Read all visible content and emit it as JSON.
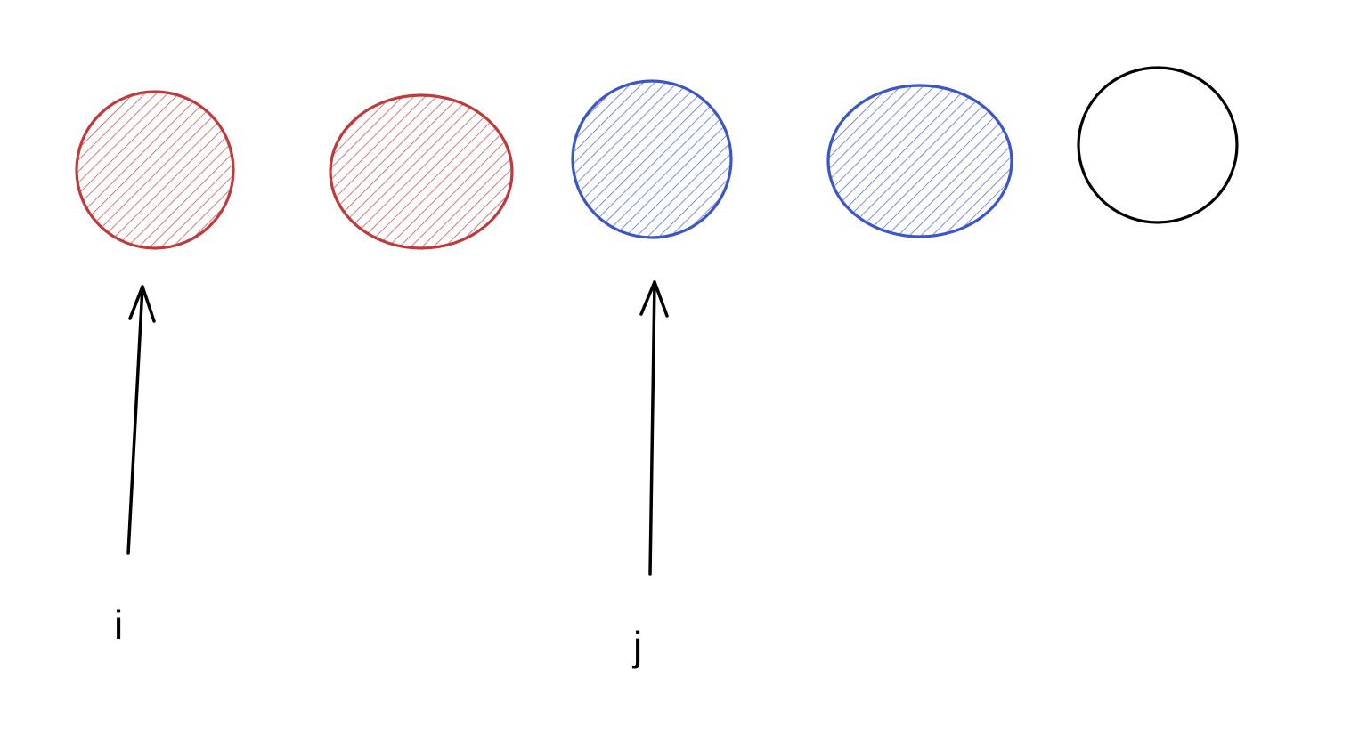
{
  "diagram": {
    "background": "#ffffff",
    "nodes": [
      {
        "id": "node-1",
        "fill_style": "hatched",
        "color": "#c0393b"
      },
      {
        "id": "node-2",
        "fill_style": "hatched",
        "color": "#c0393b"
      },
      {
        "id": "node-3",
        "fill_style": "hatched",
        "color": "#3a56c9"
      },
      {
        "id": "node-4",
        "fill_style": "hatched",
        "color": "#3a56c9"
      },
      {
        "id": "node-5",
        "fill_style": "none",
        "color": "#000000"
      }
    ],
    "pointers": [
      {
        "label": "i",
        "target_index": 0,
        "color": "#000000"
      },
      {
        "label": "j",
        "target_index": 2,
        "color": "#000000"
      }
    ]
  }
}
